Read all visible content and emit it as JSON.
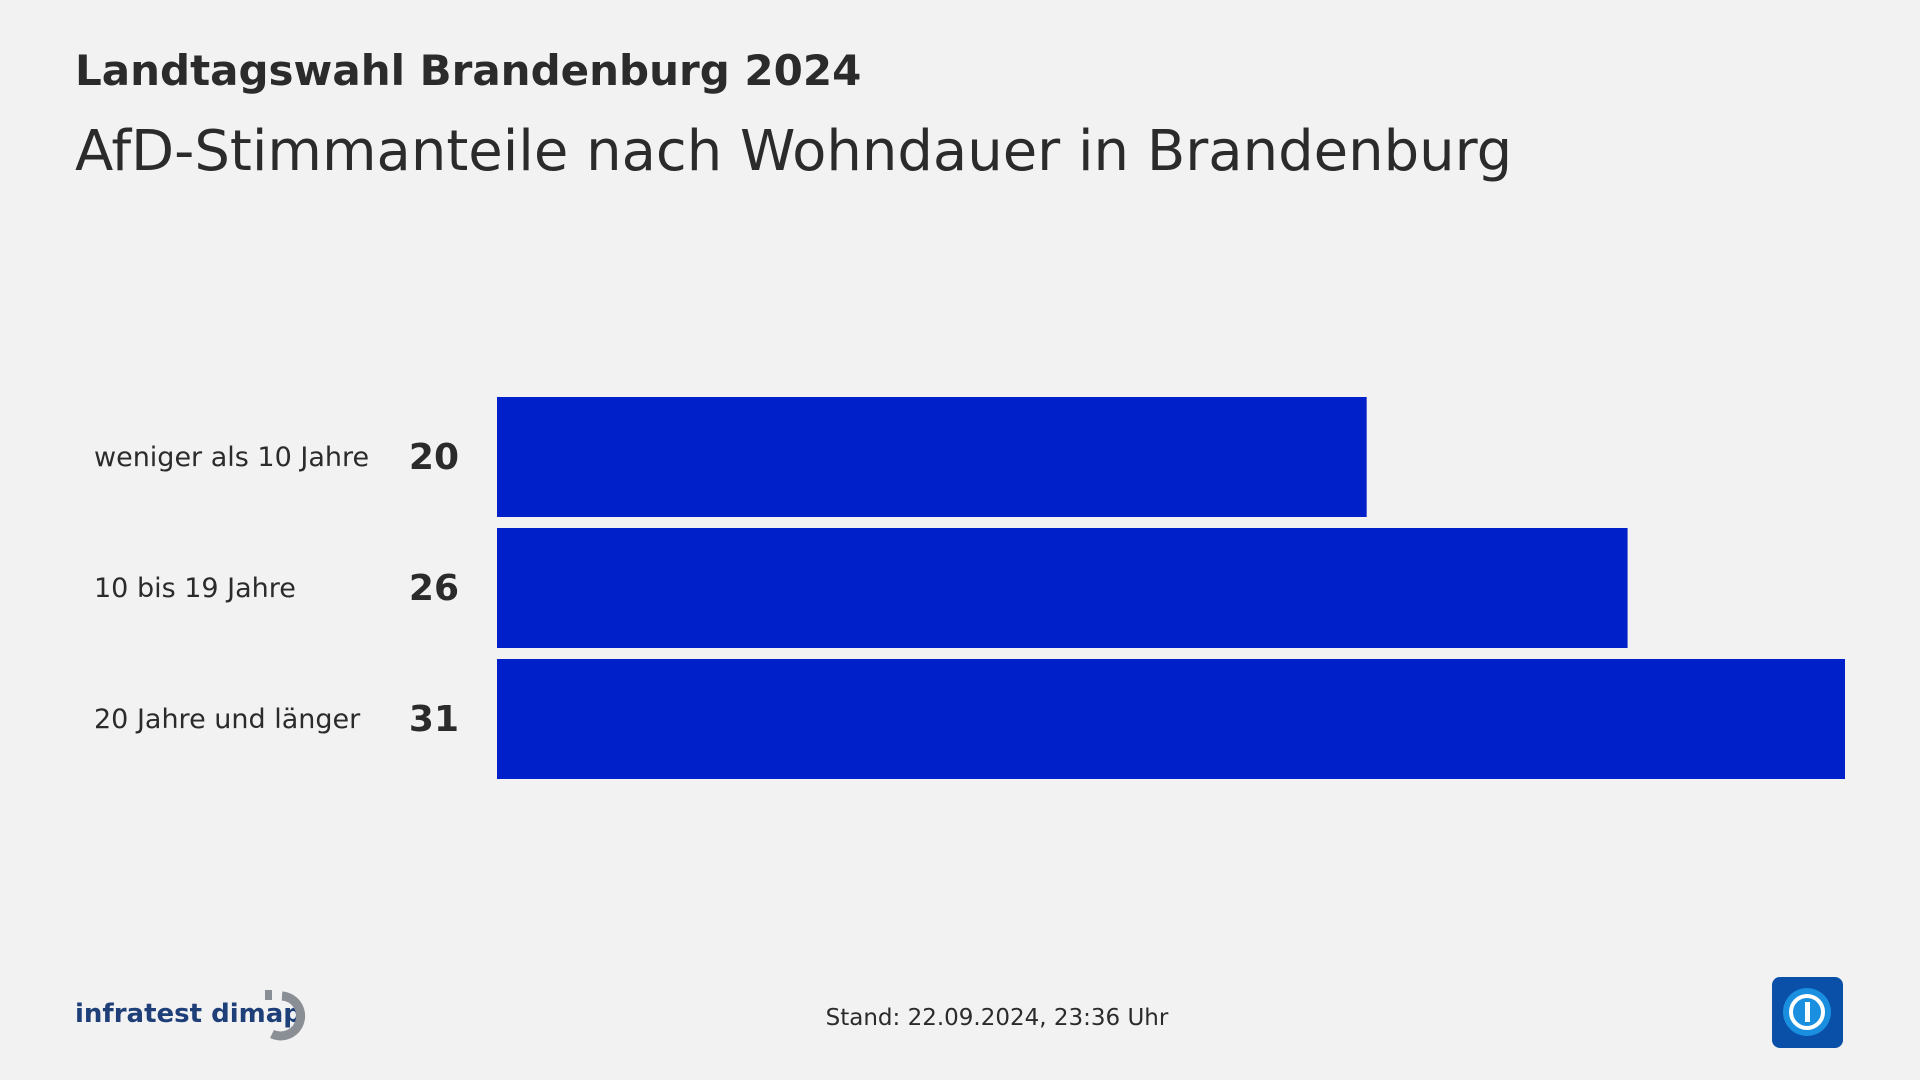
{
  "chart_data": {
    "type": "hbar",
    "supertitle": "Landtagswahl Brandenburg 2024",
    "title": "AfD-Stimmanteile nach Wohndauer in Brandenburg",
    "categories": [
      "weniger als 10 Jahre",
      "10 bis 19 Jahre",
      "20 Jahre und länger"
    ],
    "values": [
      20,
      26,
      31
    ],
    "color": "#0021c9",
    "source": "infratest dimap",
    "footer_note": "Stand:  22.09.2024, 23:36 Uhr"
  }
}
